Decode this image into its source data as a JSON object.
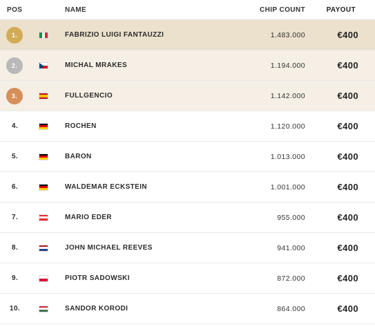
{
  "headers": {
    "pos": "POS",
    "name": "NAME",
    "chips": "CHIP COUNT",
    "payout": "PAYOUT"
  },
  "colors": {
    "row1_bg": "#ebe1cc",
    "row2_bg": "#f5efe5",
    "row3_bg": "#f5efe5",
    "gold": "#d2ab55",
    "silver": "#b9b9b9",
    "bronze": "#d68f5a"
  },
  "rows": [
    {
      "pos": "1.",
      "flag": "italy-flag",
      "name": "FABRIZIO LUIGI FANTAUZZI",
      "chips": "1.483.000",
      "payout": "€400"
    },
    {
      "pos": "2.",
      "flag": "czech-flag",
      "name": "MICHAL MRAKES",
      "chips": "1.194.000",
      "payout": "€400"
    },
    {
      "pos": "3.",
      "flag": "spain-flag",
      "name": "FULLGENCIO",
      "chips": "1.142.000",
      "payout": "€400"
    },
    {
      "pos": "4.",
      "flag": "germany-flag",
      "name": "ROCHEN",
      "chips": "1.120.000",
      "payout": "€400"
    },
    {
      "pos": "5.",
      "flag": "germany-flag",
      "name": "BARON",
      "chips": "1.013.000",
      "payout": "€400"
    },
    {
      "pos": "6.",
      "flag": "germany-flag",
      "name": "WALDEMAR ECKSTEIN",
      "chips": "1.001.000",
      "payout": "€400"
    },
    {
      "pos": "7.",
      "flag": "austria-flag",
      "name": "MARIO EDER",
      "chips": "955.000",
      "payout": "€400"
    },
    {
      "pos": "8.",
      "flag": "netherlands-flag",
      "name": "JOHN MICHAEL REEVES",
      "chips": "941.000",
      "payout": "€400"
    },
    {
      "pos": "9.",
      "flag": "poland-flag",
      "name": "PIOTR SADOWSKI",
      "chips": "872.000",
      "payout": "€400"
    },
    {
      "pos": "10.",
      "flag": "hungary-flag",
      "name": "SANDOR KORODI",
      "chips": "864.000",
      "payout": "€400"
    }
  ]
}
